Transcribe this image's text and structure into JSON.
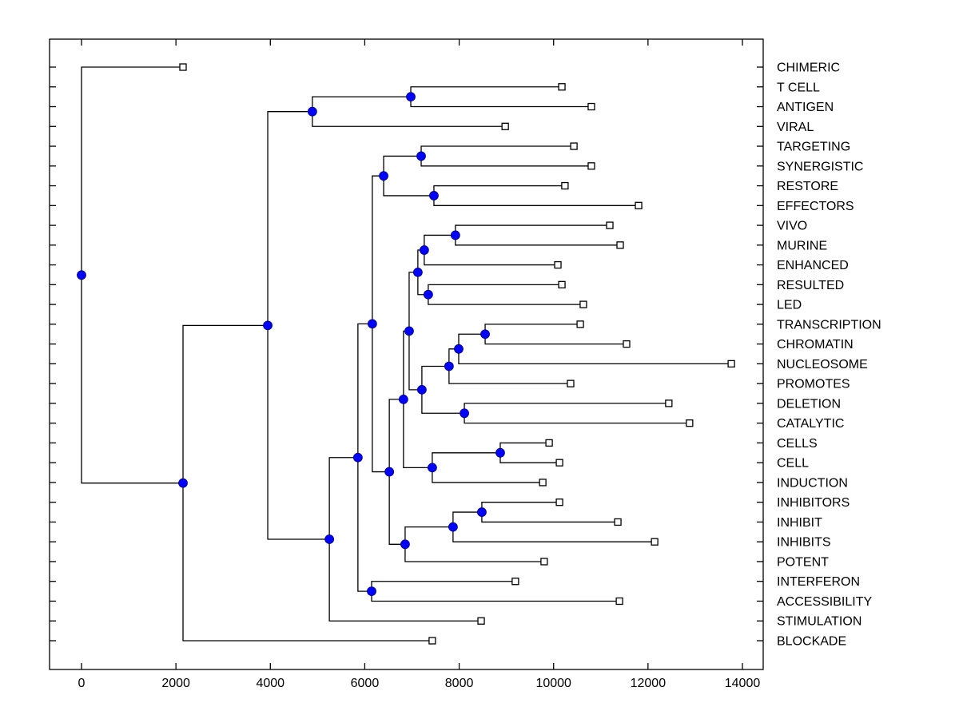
{
  "chart_data": {
    "type": "dendrogram",
    "title": "",
    "xlabel": "",
    "ylabel": "",
    "xlim": [
      -700,
      14450
    ],
    "xticks": [
      0,
      2000,
      4000,
      6000,
      8000,
      10000,
      12000,
      14000
    ],
    "xtick_labels": [
      "0",
      "2000",
      "4000",
      "6000",
      "8000",
      "10000",
      "12000",
      "14000"
    ],
    "leaves": [
      {
        "id": "CHIMERIC",
        "label": "CHIMERIC",
        "x": 2150
      },
      {
        "id": "T_CELL",
        "label": "T CELL",
        "x": 10175
      },
      {
        "id": "ANTIGEN",
        "label": "ANTIGEN",
        "x": 10800
      },
      {
        "id": "VIRAL",
        "label": "VIRAL",
        "x": 8975
      },
      {
        "id": "TARGETING",
        "label": "TARGETING",
        "x": 10430
      },
      {
        "id": "SYNERGISTIC",
        "label": "SYNERGISTIC",
        "x": 10800
      },
      {
        "id": "RESTORE",
        "label": "RESTORE",
        "x": 10240
      },
      {
        "id": "EFFECTORS",
        "label": "EFFECTORS",
        "x": 11800
      },
      {
        "id": "VIVO",
        "label": "VIVO",
        "x": 11190
      },
      {
        "id": "MURINE",
        "label": "MURINE",
        "x": 11410
      },
      {
        "id": "ENHANCED",
        "label": "ENHANCED",
        "x": 10090
      },
      {
        "id": "RESULTED",
        "label": "RESULTED",
        "x": 10175
      },
      {
        "id": "LED",
        "label": "LED",
        "x": 10630
      },
      {
        "id": "TRANSCRIPTION",
        "label": "TRANSCRIPTION",
        "x": 10565
      },
      {
        "id": "CHROMATIN",
        "label": "CHROMATIN",
        "x": 11545
      },
      {
        "id": "NUCLEOSOME",
        "label": "NUCLEOSOME",
        "x": 13765
      },
      {
        "id": "PROMOTES",
        "label": "PROMOTES",
        "x": 10360
      },
      {
        "id": "DELETION",
        "label": "DELETION",
        "x": 12440
      },
      {
        "id": "CATALYTIC",
        "label": "CATALYTIC",
        "x": 12880
      },
      {
        "id": "CELLS",
        "label": "CELLS",
        "x": 9905
      },
      {
        "id": "CELL",
        "label": "CELL",
        "x": 10125
      },
      {
        "id": "INDUCTION",
        "label": "INDUCTION",
        "x": 9770
      },
      {
        "id": "INHIBITORS",
        "label": "INHIBITORS",
        "x": 10125
      },
      {
        "id": "INHIBIT",
        "label": "INHIBIT",
        "x": 11360
      },
      {
        "id": "INHIBITS",
        "label": "INHIBITS",
        "x": 12140
      },
      {
        "id": "POTENT",
        "label": "POTENT",
        "x": 9800
      },
      {
        "id": "INTERFERON",
        "label": "INTERFERON",
        "x": 9190
      },
      {
        "id": "ACCESSIBILITY",
        "label": "ACCESSIBILITY",
        "x": 11395
      },
      {
        "id": "STIMULATION",
        "label": "STIMULATION",
        "x": 8465
      },
      {
        "id": "BLOCKADE",
        "label": "BLOCKADE",
        "x": 7430
      }
    ],
    "nodes": [
      {
        "id": "n_tc_ag",
        "x": 6975,
        "children": [
          "T_CELL",
          "ANTIGEN"
        ]
      },
      {
        "id": "n_viral",
        "x": 4890,
        "children": [
          "n_tc_ag",
          "VIRAL"
        ]
      },
      {
        "id": "n_targ_syn",
        "x": 7195,
        "children": [
          "TARGETING",
          "SYNERGISTIC"
        ]
      },
      {
        "id": "n_rest_eff",
        "x": 7465,
        "children": [
          "RESTORE",
          "EFFECTORS"
        ]
      },
      {
        "id": "n_tse",
        "x": 6400,
        "children": [
          "n_targ_syn",
          "n_rest_eff"
        ]
      },
      {
        "id": "n_vivo_mur",
        "x": 7920,
        "children": [
          "VIVO",
          "MURINE"
        ]
      },
      {
        "id": "n_enh",
        "x": 7260,
        "children": [
          "n_vivo_mur",
          "ENHANCED"
        ]
      },
      {
        "id": "n_res_led",
        "x": 7345,
        "children": [
          "RESULTED",
          "LED"
        ]
      },
      {
        "id": "n_vml",
        "x": 7125,
        "children": [
          "n_enh",
          "n_res_led"
        ]
      },
      {
        "id": "n_tr_chr",
        "x": 8550,
        "children": [
          "TRANSCRIPTION",
          "CHROMATIN"
        ]
      },
      {
        "id": "n_nuc",
        "x": 7990,
        "children": [
          "n_tr_chr",
          "NUCLEOSOME"
        ]
      },
      {
        "id": "n_prom",
        "x": 7785,
        "children": [
          "n_nuc",
          "PROMOTES"
        ]
      },
      {
        "id": "n_del_cat",
        "x": 8110,
        "children": [
          "DELETION",
          "CATALYTIC"
        ]
      },
      {
        "id": "n_tcd",
        "x": 7210,
        "children": [
          "n_prom",
          "n_del_cat"
        ]
      },
      {
        "id": "n_vt",
        "x": 6940,
        "children": [
          "n_vml",
          "n_tcd"
        ]
      },
      {
        "id": "n_cells_cell",
        "x": 8870,
        "children": [
          "CELLS",
          "CELL"
        ]
      },
      {
        "id": "n_ind",
        "x": 7430,
        "children": [
          "n_cells_cell",
          "INDUCTION"
        ]
      },
      {
        "id": "n_vi",
        "x": 6820,
        "children": [
          "n_vt",
          "n_ind"
        ]
      },
      {
        "id": "n_inh_inh",
        "x": 8480,
        "children": [
          "INHIBITORS",
          "INHIBIT"
        ]
      },
      {
        "id": "n_inhs",
        "x": 7870,
        "children": [
          "n_inh_inh",
          "INHIBITS"
        ]
      },
      {
        "id": "n_pot",
        "x": 6855,
        "children": [
          "n_inhs",
          "POTENT"
        ]
      },
      {
        "id": "n_vip",
        "x": 6520,
        "children": [
          "n_vi",
          "n_pot"
        ]
      },
      {
        "id": "n_tv",
        "x": 6160,
        "children": [
          "n_tse",
          "n_vip"
        ]
      },
      {
        "id": "n_int_acc",
        "x": 6145,
        "children": [
          "INTERFERON",
          "ACCESSIBILITY"
        ]
      },
      {
        "id": "n_ti",
        "x": 5855,
        "children": [
          "n_tv",
          "n_int_acc"
        ]
      },
      {
        "id": "n_stim",
        "x": 5250,
        "children": [
          "n_ti",
          "STIMULATION"
        ]
      },
      {
        "id": "n_as",
        "x": 3945,
        "children": [
          "n_viral",
          "n_stim"
        ]
      },
      {
        "id": "n_block",
        "x": 2150,
        "children": [
          "n_as",
          "BLOCKADE"
        ]
      },
      {
        "id": "root",
        "x": 0,
        "children": [
          "CHIMERIC",
          "n_block"
        ]
      }
    ],
    "root": "root",
    "grid": false,
    "legend": "none",
    "colors": {
      "internal_node": "#0000ff",
      "leaf_marker": "#ffffff",
      "line": "#000000"
    }
  }
}
